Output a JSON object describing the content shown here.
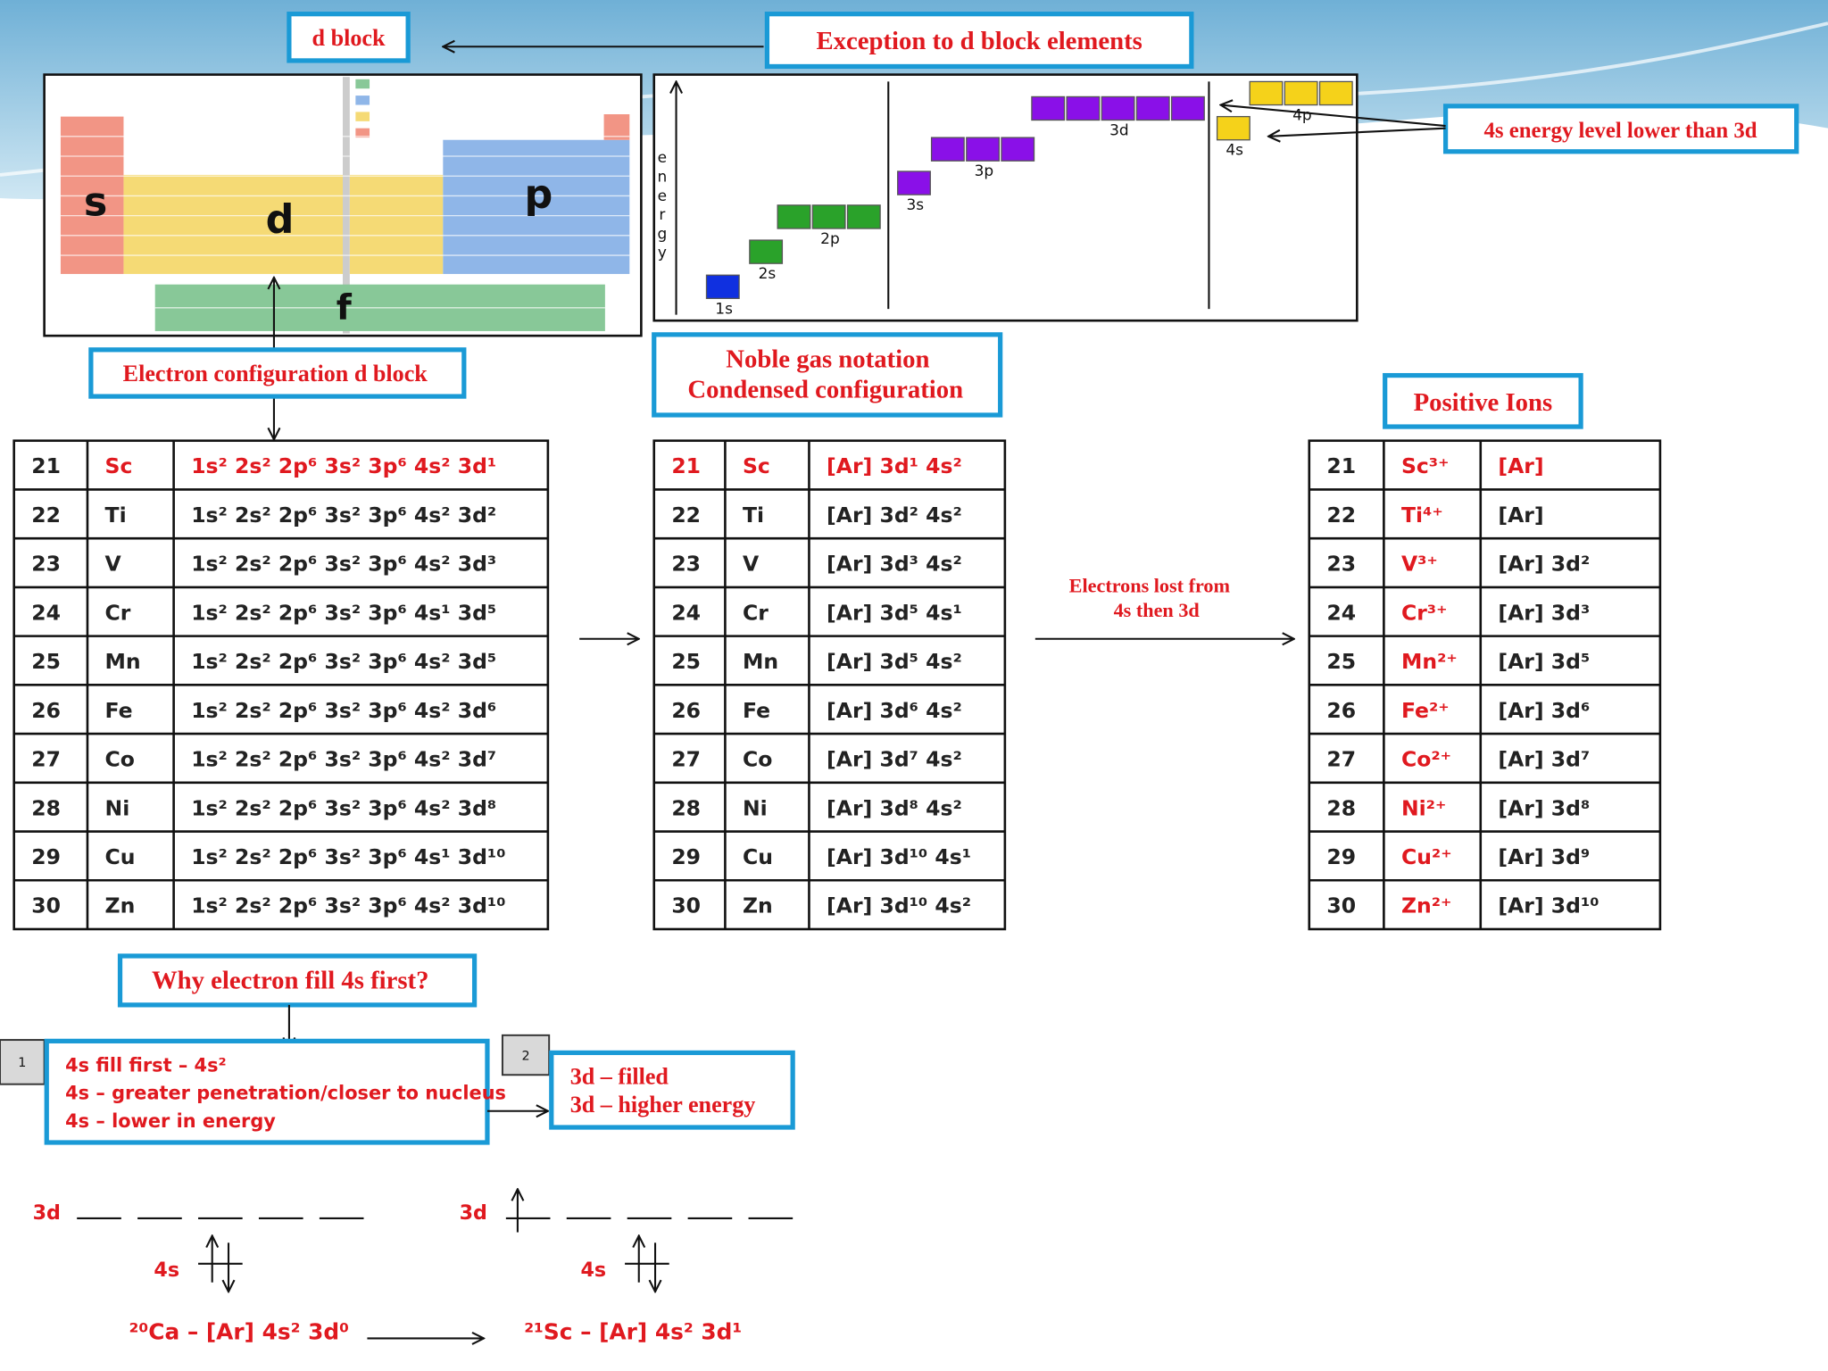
{
  "labels": {
    "d_block": "d block",
    "exception": "Exception to d block elements",
    "energy_lower": "4s energy level lower than 3d",
    "e_config": "Electron configuration d block",
    "noble": [
      "Noble gas notation",
      "Condensed configuration"
    ],
    "positive": "Positive Ions",
    "lost": [
      "Electrons lost from",
      "4s  then 3d"
    ],
    "why": "Why electron fill 4s first?"
  },
  "periodic_table": {
    "blocks": [
      "s",
      "d",
      "p",
      "f"
    ]
  },
  "energy_diagram": {
    "axis": "energy",
    "levels": [
      "1s",
      "2s",
      "2p",
      "3s",
      "3p",
      "3d",
      "4s",
      "4p"
    ]
  },
  "table_full": {
    "rows": [
      [
        "21",
        "Sc",
        "1s² 2s² 2p⁶ 3s² 3p⁶ 4s² 3d¹"
      ],
      [
        "22",
        "Ti",
        "1s² 2s² 2p⁶ 3s² 3p⁶ 4s² 3d²"
      ],
      [
        "23",
        "V",
        "1s² 2s² 2p⁶ 3s² 3p⁶ 4s² 3d³"
      ],
      [
        "24",
        "Cr",
        "1s² 2s² 2p⁶ 3s² 3p⁶ 4s¹ 3d⁵"
      ],
      [
        "25",
        "Mn",
        "1s² 2s² 2p⁶ 3s² 3p⁶ 4s² 3d⁵"
      ],
      [
        "26",
        "Fe",
        "1s² 2s² 2p⁶ 3s² 3p⁶ 4s² 3d⁶"
      ],
      [
        "27",
        "Co",
        "1s² 2s² 2p⁶ 3s² 3p⁶ 4s² 3d⁷"
      ],
      [
        "28",
        "Ni",
        "1s² 2s² 2p⁶ 3s² 3p⁶ 4s² 3d⁸"
      ],
      [
        "29",
        "Cu",
        "1s² 2s² 2p⁶ 3s² 3p⁶ 4s¹ 3d¹⁰"
      ],
      [
        "30",
        "Zn",
        "1s² 2s² 2p⁶ 3s² 3p⁶ 4s² 3d¹⁰"
      ]
    ]
  },
  "table_noble": {
    "rows": [
      [
        "21",
        "Sc",
        "[Ar] 3d¹ 4s²"
      ],
      [
        "22",
        "Ti",
        "[Ar] 3d² 4s²"
      ],
      [
        "23",
        "V",
        "[Ar] 3d³ 4s²"
      ],
      [
        "24",
        "Cr",
        "[Ar] 3d⁵ 4s¹"
      ],
      [
        "25",
        "Mn",
        "[Ar] 3d⁵ 4s²"
      ],
      [
        "26",
        "Fe",
        "[Ar] 3d⁶ 4s²"
      ],
      [
        "27",
        "Co",
        "[Ar] 3d⁷ 4s²"
      ],
      [
        "28",
        "Ni",
        "[Ar] 3d⁸ 4s²"
      ],
      [
        "29",
        "Cu",
        "[Ar] 3d¹⁰ 4s¹"
      ],
      [
        "30",
        "Zn",
        "[Ar] 3d¹⁰ 4s²"
      ]
    ]
  },
  "table_ions": {
    "rows": [
      [
        "21",
        "Sc³⁺",
        "[Ar]"
      ],
      [
        "22",
        "Ti⁴⁺",
        "[Ar]"
      ],
      [
        "23",
        "V³⁺",
        "[Ar] 3d²"
      ],
      [
        "24",
        "Cr³⁺",
        "[Ar] 3d³"
      ],
      [
        "25",
        "Mn²⁺",
        "[Ar] 3d⁵"
      ],
      [
        "26",
        "Fe²⁺",
        "[Ar] 3d⁶"
      ],
      [
        "27",
        "Co²⁺",
        "[Ar] 3d⁷"
      ],
      [
        "28",
        "Ni²⁺",
        "[Ar] 3d⁸"
      ],
      [
        "29",
        "Cu²⁺",
        "[Ar] 3d⁹"
      ],
      [
        "30",
        "Zn²⁺",
        "[Ar] 3d¹⁰"
      ]
    ]
  },
  "notes": {
    "step1": "1",
    "box1": [
      "4s fill  first – 4s²",
      "4s – greater penetration/closer to nucleus",
      "4s – lower in energy"
    ],
    "step2": "2",
    "box2": [
      "3d – filled",
      "3d – higher energy"
    ]
  },
  "orbitals": {
    "left": {
      "d": "3d",
      "s": "4s",
      "formula": "²⁰Ca – [Ar] 4s² 3d⁰"
    },
    "right": {
      "d": "3d",
      "s": "4s",
      "formula": "²¹Sc – [Ar] 4s² 3d¹"
    }
  }
}
